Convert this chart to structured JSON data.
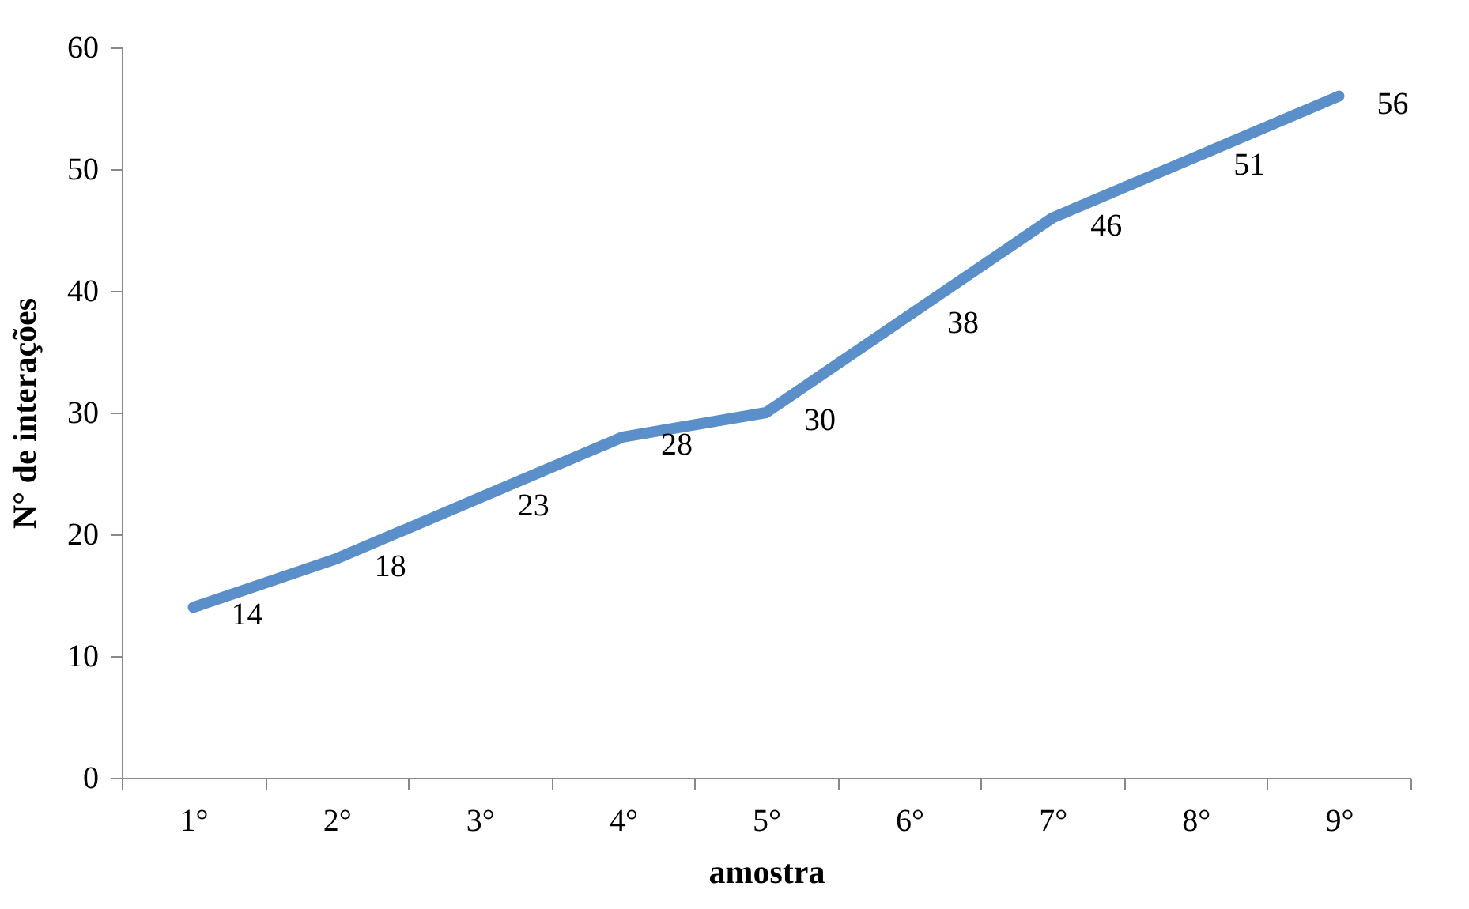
{
  "chart_data": {
    "type": "line",
    "xlabel": "amostra",
    "ylabel": "N° de interações",
    "categories": [
      "1°",
      "2°",
      "3°",
      "4°",
      "5°",
      "6°",
      "7°",
      "8°",
      "9°"
    ],
    "series": [
      {
        "color": "#5b8fc9",
        "values": [
          14,
          18,
          23,
          28,
          30,
          38,
          46,
          51,
          56
        ]
      }
    ],
    "ylim": [
      0,
      60
    ],
    "yticks": [
      0,
      10,
      20,
      30,
      40,
      50,
      60
    ],
    "grid": false,
    "data_labels": true,
    "marker": "none",
    "line_style": "solid"
  }
}
